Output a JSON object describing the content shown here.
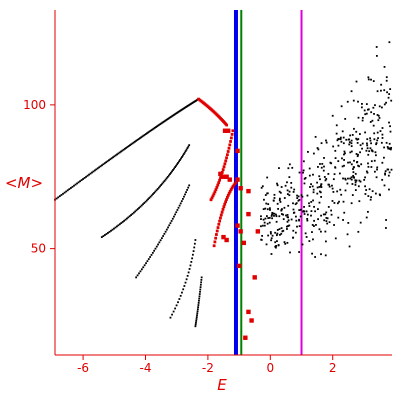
{
  "chart_data": {
    "type": "scatter",
    "title": "",
    "xlabel": "E",
    "ylabel": "<M>",
    "xlim": [
      -6.9,
      3.9
    ],
    "ylim": [
      13,
      133
    ],
    "x_ticks": [
      -6,
      -4,
      -2,
      0,
      2
    ],
    "x_tick_labels": [
      "-6",
      "-4",
      "-2",
      "0",
      "2"
    ],
    "y_ticks": [
      50,
      100
    ],
    "y_tick_labels": [
      "50",
      "100"
    ],
    "grid": false,
    "legend": "none",
    "colors": {
      "axis": "#e00000",
      "black_points": "#000000",
      "red_points": "#e00000",
      "blue_line": "#0000ee",
      "green_line": "#008000",
      "magenta_line": "#dd00dd"
    },
    "vertical_lines": [
      {
        "x": -1.1,
        "color": "blue"
      },
      {
        "x": -0.93,
        "color": "green"
      },
      {
        "x": 1.0,
        "color": "magenta"
      }
    ],
    "black_curves": [
      {
        "x": [
          -6.9,
          -3.8,
          -2.3
        ],
        "y": [
          67,
          92,
          102
        ]
      },
      {
        "x": [
          -5.4,
          -3.6,
          -2.6
        ],
        "y": [
          54,
          67,
          86
        ]
      },
      {
        "x": [
          -4.3,
          -3.3,
          -2.6
        ],
        "y": [
          40,
          55,
          72
        ]
      },
      {
        "x": [
          -3.2,
          -2.6,
          -2.4
        ],
        "y": [
          26,
          38,
          53
        ]
      },
      {
        "x": [
          -2.4,
          -2.3,
          -2.2
        ],
        "y": [
          23,
          30,
          40
        ]
      }
    ],
    "red_curves": [
      {
        "x": [
          -2.3,
          -1.8,
          -1.4
        ],
        "y": [
          102,
          98,
          93
        ]
      },
      {
        "x": [
          -1.9,
          -1.5,
          -1.2
        ],
        "y": [
          67,
          75,
          91
        ]
      },
      {
        "x": [
          -1.8,
          -1.5,
          -1.1
        ],
        "y": [
          51,
          68,
          73
        ]
      }
    ],
    "red_markers": [
      {
        "x": -1.45,
        "y": 91
      },
      {
        "x": -1.35,
        "y": 91
      },
      {
        "x": -1.6,
        "y": 76
      },
      {
        "x": -1.5,
        "y": 75
      },
      {
        "x": -1.4,
        "y": 75
      },
      {
        "x": -1.3,
        "y": 74
      },
      {
        "x": -1.5,
        "y": 54
      },
      {
        "x": -1.4,
        "y": 53
      },
      {
        "x": -1.05,
        "y": 84
      },
      {
        "x": -1.05,
        "y": 74
      },
      {
        "x": -0.95,
        "y": 71
      },
      {
        "x": -0.7,
        "y": 70
      },
      {
        "x": -1.05,
        "y": 58
      },
      {
        "x": -0.95,
        "y": 56
      },
      {
        "x": -0.85,
        "y": 52
      },
      {
        "x": -1.0,
        "y": 44
      },
      {
        "x": -0.7,
        "y": 62
      },
      {
        "x": -0.4,
        "y": 56
      },
      {
        "x": -0.5,
        "y": 40
      },
      {
        "x": -0.7,
        "y": 28
      },
      {
        "x": -0.6,
        "y": 25
      },
      {
        "x": -0.8,
        "y": 19
      }
    ],
    "black_cloud": {
      "x_range": [
        -0.3,
        3.9
      ],
      "y_lower": [
        [
          -0.3,
          48
        ],
        [
          1.0,
          40
        ],
        [
          3.9,
          50
        ]
      ],
      "y_upper": [
        [
          -0.3,
          76
        ],
        [
          1.0,
          86
        ],
        [
          3.9,
          133
        ]
      ]
    }
  }
}
